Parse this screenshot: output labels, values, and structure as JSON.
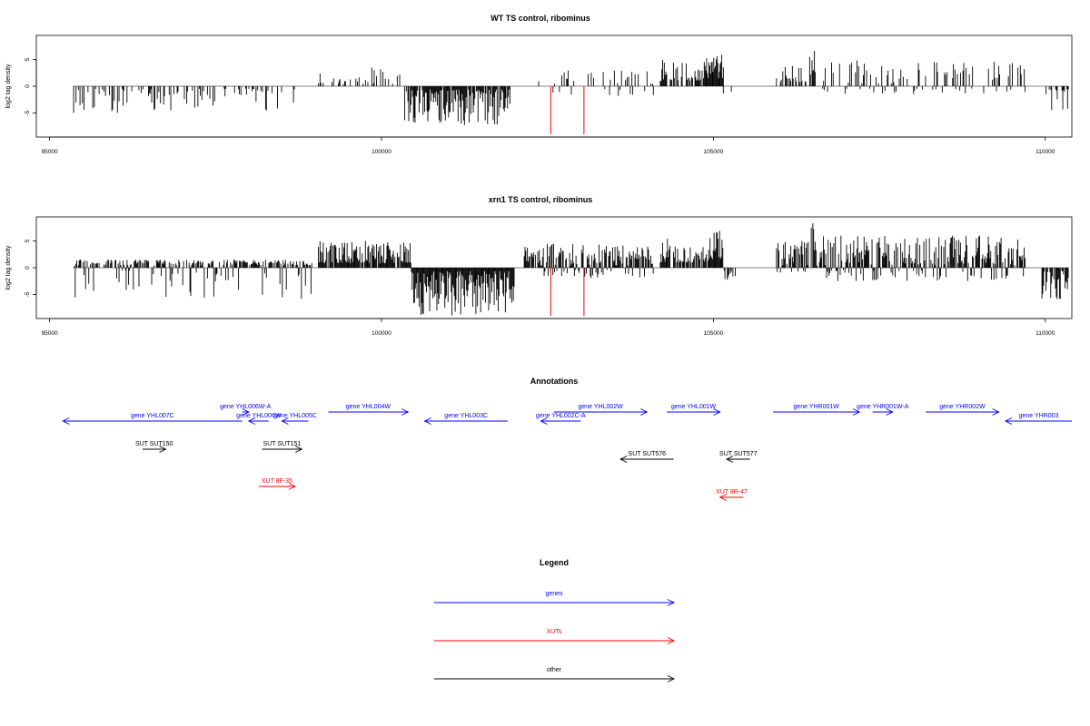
{
  "chart_data": [
    {
      "type": "bar",
      "title": "WT TS control, ribominus",
      "xlabel": "",
      "ylabel": "log2 tag density",
      "xlim": [
        94800,
        110400
      ],
      "ylim": [
        -9.5,
        9.5
      ],
      "x_ticks": [
        95000,
        100000,
        105000,
        110000
      ],
      "x_tick_labels": [
        "95000",
        "100000",
        "105000",
        "110000"
      ],
      "y_ticks": [
        -5,
        0,
        5
      ],
      "y_tick_labels": [
        "-5",
        "0",
        "5"
      ],
      "grid": false,
      "markers": [
        {
          "x": 102550,
          "y": -9,
          "color": "#ff0000"
        },
        {
          "x": 103050,
          "y": -9,
          "color": "#ff0000"
        }
      ],
      "density_regions": [
        {
          "from": 95350,
          "to": 98700,
          "min": -5,
          "max": -0.4,
          "density": 0.35
        },
        {
          "from": 99050,
          "to": 100300,
          "min": 0.4,
          "max": 3.5,
          "density": 0.3
        },
        {
          "from": 100350,
          "to": 101950,
          "min": -7.5,
          "max": -0.6,
          "density": 0.85
        },
        {
          "from": 102200,
          "to": 104100,
          "min": -2,
          "max": 3,
          "density": 0.2
        },
        {
          "from": 104200,
          "to": 104300,
          "min": 1,
          "max": 5.3,
          "density": 1
        },
        {
          "from": 104350,
          "to": 104850,
          "min": 1,
          "max": 4.5,
          "density": 0.6
        },
        {
          "from": 104850,
          "to": 105150,
          "min": 1.5,
          "max": 6,
          "density": 1
        },
        {
          "from": 105150,
          "to": 105300,
          "min": -1.5,
          "max": -0.5,
          "density": 0.4
        },
        {
          "from": 105950,
          "to": 106400,
          "min": 0.8,
          "max": 4,
          "density": 0.35
        },
        {
          "from": 106450,
          "to": 106550,
          "min": 2,
          "max": 7.5,
          "density": 0.5
        },
        {
          "from": 106600,
          "to": 109700,
          "min": -1.5,
          "max": 5,
          "density": 0.3
        },
        {
          "from": 110000,
          "to": 110350,
          "min": -4.5,
          "max": -0.5,
          "density": 0.6
        }
      ]
    },
    {
      "type": "bar",
      "title": "xrn1 TS control, ribominus",
      "xlabel": "",
      "ylabel": "log2 tag density",
      "xlim": [
        94800,
        110400
      ],
      "ylim": [
        -9.5,
        9.5
      ],
      "x_ticks": [
        95000,
        100000,
        105000,
        110000
      ],
      "x_tick_labels": [
        "95000",
        "100000",
        "105000",
        "110000"
      ],
      "y_ticks": [
        -5,
        0,
        5
      ],
      "y_tick_labels": [
        "-5",
        "0",
        "5"
      ],
      "grid": false,
      "markers": [
        {
          "x": 102550,
          "y": -9,
          "color": "#ff0000"
        },
        {
          "x": 103050,
          "y": -9,
          "color": "#ff0000"
        }
      ],
      "density_regions": [
        {
          "from": 95350,
          "to": 98950,
          "min": -6,
          "max": 1.5,
          "density": 0.75
        },
        {
          "from": 99050,
          "to": 100450,
          "min": 0.8,
          "max": 5,
          "density": 0.9
        },
        {
          "from": 100450,
          "to": 102000,
          "min": -9,
          "max": -0.6,
          "density": 1
        },
        {
          "from": 102150,
          "to": 104100,
          "min": -2,
          "max": 4.5,
          "density": 0.85
        },
        {
          "from": 104200,
          "to": 104350,
          "min": 1,
          "max": 6,
          "density": 1
        },
        {
          "from": 104400,
          "to": 104950,
          "min": 1,
          "max": 4,
          "density": 0.8
        },
        {
          "from": 104950,
          "to": 105150,
          "min": 1.5,
          "max": 7,
          "density": 1
        },
        {
          "from": 105150,
          "to": 105350,
          "min": -2.5,
          "max": -0.5,
          "density": 0.6
        },
        {
          "from": 105950,
          "to": 106450,
          "min": -1,
          "max": 5,
          "density": 0.8
        },
        {
          "from": 106450,
          "to": 106550,
          "min": 2,
          "max": 8.7,
          "density": 0.6
        },
        {
          "from": 106550,
          "to": 109700,
          "min": -2.5,
          "max": 6,
          "density": 0.8
        },
        {
          "from": 109950,
          "to": 110350,
          "min": -6.5,
          "max": -0.5,
          "density": 0.9
        }
      ]
    }
  ],
  "annotations": {
    "title": "Annotations",
    "xlim": [
      94800,
      110400
    ],
    "tracks": [
      {
        "label": "gene YHL007C",
        "type": "genes",
        "start": 95200,
        "end": 97900,
        "strand": "-",
        "row": 1
      },
      {
        "label": "gene YHL006W-A",
        "type": "genes",
        "start": 97900,
        "end": 98000,
        "strand": "+",
        "row": 0
      },
      {
        "label": "gene YHL006W",
        "type": "genes",
        "start": 98000,
        "end": 98300,
        "strand": "-",
        "row": 1
      },
      {
        "label": "gene YHL005C",
        "type": "genes",
        "start": 98500,
        "end": 98900,
        "strand": "-",
        "row": 1
      },
      {
        "label": "gene YHL004W",
        "type": "genes",
        "start": 99200,
        "end": 100400,
        "strand": "+",
        "row": 0
      },
      {
        "label": "gene YHL003C",
        "type": "genes",
        "start": 100650,
        "end": 101900,
        "strand": "-",
        "row": 1
      },
      {
        "label": "gene YHL002C-A",
        "type": "genes",
        "start": 102400,
        "end": 103000,
        "strand": "-",
        "row": 1
      },
      {
        "label": "gene YHL002W",
        "type": "genes",
        "start": 102600,
        "end": 104000,
        "strand": "+",
        "row": 0
      },
      {
        "label": "gene YHL001W",
        "type": "genes",
        "start": 104300,
        "end": 105100,
        "strand": "+",
        "row": 0
      },
      {
        "label": "gene YHR001W",
        "type": "genes",
        "start": 105900,
        "end": 107200,
        "strand": "+",
        "row": 0
      },
      {
        "label": "gene YHR001W-A",
        "type": "genes",
        "start": 107400,
        "end": 107700,
        "strand": "+",
        "row": 0
      },
      {
        "label": "gene YHR002W",
        "type": "genes",
        "start": 108200,
        "end": 109300,
        "strand": "+",
        "row": 0
      },
      {
        "label": "gene YHR003",
        "type": "genes",
        "start": 109400,
        "end": 110400,
        "strand": "-",
        "row": 1
      },
      {
        "label": "SUT SUT150",
        "type": "other",
        "start": 96400,
        "end": 96750,
        "strand": "+",
        "row": 2
      },
      {
        "label": "SUT SUT151",
        "type": "other",
        "start": 98200,
        "end": 98800,
        "strand": "+",
        "row": 2
      },
      {
        "label": "SUT SUT576",
        "type": "other",
        "start": 103600,
        "end": 104400,
        "strand": "-",
        "row": 3
      },
      {
        "label": "SUT SUT577",
        "type": "other",
        "start": 105200,
        "end": 105550,
        "strand": "-",
        "row": 3
      },
      {
        "label": "XUT 8F-35",
        "type": "XUTs",
        "start": 98150,
        "end": 98700,
        "strand": "+",
        "row": 4
      },
      {
        "label": "XUT 8R-47",
        "type": "XUTs",
        "start": 105100,
        "end": 105450,
        "strand": "-",
        "row": 5
      }
    ]
  },
  "legend": {
    "title": "Legend",
    "items": [
      {
        "label": "genes",
        "color": "#0000ff"
      },
      {
        "label": "XUTs",
        "color": "#ff0000"
      },
      {
        "label": "other",
        "color": "#000000"
      }
    ]
  },
  "colors": {
    "genes": "#0000ff",
    "XUTs": "#ff0000",
    "other": "#000000",
    "baseline": "#808080"
  }
}
